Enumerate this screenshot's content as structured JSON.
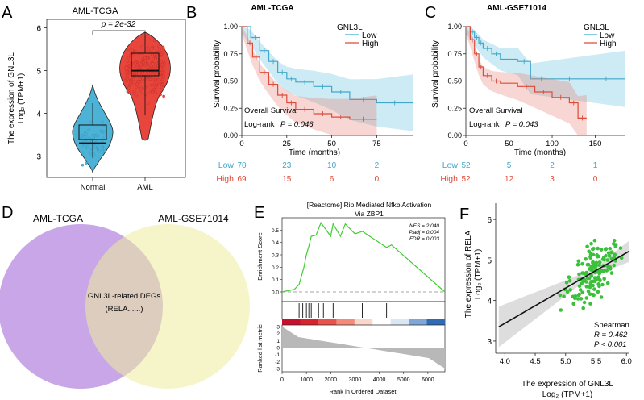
{
  "colors": {
    "normal": "#4db3d6",
    "aml": "#e8453c",
    "low": "#41a7c9",
    "high": "#dd4b39",
    "venn_left": "#c9a6e8",
    "venn_right": "#ecec9c",
    "enrich": "#3fcf2e",
    "scatter": "#3cc03c"
  },
  "chart_data": [
    {
      "panel": "A",
      "type": "violin+box",
      "title": "AML-TCGA",
      "ylabel_line1": "The expression of GNL3L",
      "ylabel_line2": "Log₂ (TPM+1)",
      "categories": [
        "Normal",
        "AML"
      ],
      "medians": [
        3.3,
        5.0
      ],
      "ylim": [
        2.5,
        6.2
      ],
      "yticks": [
        "3",
        "4",
        "5",
        "6"
      ],
      "pvalue": "p = 2e-32"
    },
    {
      "panel": "B",
      "type": "line",
      "title": "AML-TCGA",
      "xlabel": "Time (months)",
      "ylabel": "Survival probability",
      "legend_title": "GNL3L",
      "legend": [
        "Low",
        "High"
      ],
      "xticks": [
        "0",
        "25",
        "50",
        "75"
      ],
      "yticks": [
        "0.00",
        "0.25",
        "0.50",
        "0.75",
        "1.00"
      ],
      "xlim": [
        0,
        95
      ],
      "ylim": [
        0,
        1
      ],
      "series": [
        {
          "name": "Low",
          "x": [
            0,
            5,
            10,
            15,
            20,
            25,
            30,
            40,
            50,
            60,
            75,
            95
          ],
          "y": [
            1.0,
            0.9,
            0.78,
            0.68,
            0.58,
            0.52,
            0.49,
            0.45,
            0.4,
            0.33,
            0.3,
            0.3
          ]
        },
        {
          "name": "High",
          "x": [
            0,
            3,
            6,
            10,
            15,
            20,
            25,
            30,
            40,
            50,
            60,
            75
          ],
          "y": [
            1.0,
            0.85,
            0.72,
            0.58,
            0.47,
            0.37,
            0.3,
            0.24,
            0.2,
            0.17,
            0.15,
            0.15
          ]
        }
      ],
      "annotation1": "Overall Survival",
      "annotation2": "Log-rank",
      "pvalue": "P = 0.046",
      "risk_table": {
        "times": [
          "0",
          "25",
          "50",
          "75"
        ],
        "rows": [
          {
            "label": "Low",
            "values": [
              "70",
              "23",
              "10",
              "2"
            ]
          },
          {
            "label": "High",
            "values": [
              "69",
              "15",
              "6",
              "0"
            ]
          }
        ]
      }
    },
    {
      "panel": "C",
      "type": "line",
      "title": "AML-GSE71014",
      "xlabel": "Time (months)",
      "ylabel": "Survival probability",
      "legend_title": "GNL3L",
      "legend": [
        "Low",
        "High"
      ],
      "xticks": [
        "0",
        "50",
        "100",
        "150"
      ],
      "yticks": [
        "0.00",
        "0.25",
        "0.50",
        "0.75",
        "1.00"
      ],
      "xlim": [
        0,
        185
      ],
      "ylim": [
        0,
        1
      ],
      "series": [
        {
          "name": "Low",
          "x": [
            0,
            5,
            10,
            15,
            20,
            30,
            40,
            60,
            75,
            100,
            140,
            185
          ],
          "y": [
            1.0,
            0.95,
            0.9,
            0.85,
            0.8,
            0.75,
            0.7,
            0.68,
            0.52,
            0.52,
            0.52,
            0.52
          ]
        },
        {
          "name": "High",
          "x": [
            0,
            5,
            10,
            15,
            20,
            30,
            40,
            60,
            80,
            100,
            120,
            130,
            140
          ],
          "y": [
            1.0,
            0.88,
            0.75,
            0.63,
            0.55,
            0.5,
            0.48,
            0.45,
            0.4,
            0.35,
            0.3,
            0.16,
            0.16
          ]
        }
      ],
      "annotation1": "Overall Survival",
      "annotation2": "Log-rank",
      "pvalue": "P = 0.043",
      "risk_table": {
        "times": [
          "0",
          "50",
          "100",
          "150"
        ],
        "rows": [
          {
            "label": "Low",
            "values": [
              "52",
              "5",
              "2",
              "1"
            ]
          },
          {
            "label": "High",
            "values": [
              "52",
              "12",
              "3",
              "0"
            ]
          }
        ]
      }
    },
    {
      "panel": "E",
      "type": "line",
      "title_line1": "[Reactome] Rip Mediated Nfkb Activation",
      "title_line2": "Via ZBP1",
      "ylabel_top": "Enrichment Score",
      "ylabel_bottom": "Ranked list metric",
      "xlabel": "Rank in Ordered Dataset",
      "stats": [
        "NES = 2.040",
        "P.adj = 0.004",
        "FDR = 0.003"
      ],
      "xticks": [
        "0",
        "1000",
        "2000",
        "3000",
        "4000",
        "5000",
        "6000"
      ],
      "es_yticks": [
        "0.0",
        "0.1",
        "0.2",
        "0.3",
        "0.4",
        "0.5"
      ],
      "metric_yticks": [
        "-3",
        "-2",
        "-1",
        "0",
        "1",
        "2",
        "3"
      ],
      "xlim": [
        0,
        6700
      ],
      "x": [
        0,
        500,
        700,
        800,
        900,
        1000,
        1100,
        1200,
        1400,
        1600,
        2000,
        2100,
        2400,
        2600,
        3000,
        3300,
        4300,
        4500,
        6700
      ],
      "y": [
        0.0,
        0.02,
        0.06,
        0.13,
        0.2,
        0.3,
        0.37,
        0.45,
        0.46,
        0.56,
        0.45,
        0.55,
        0.45,
        0.55,
        0.47,
        0.49,
        0.36,
        0.38,
        0.0
      ],
      "hits": [
        700,
        850,
        1000,
        1100,
        1200,
        1500,
        1700,
        2100,
        3300,
        4300
      ]
    },
    {
      "panel": "F",
      "type": "scatter",
      "xlabel_line1": "The expression of GNL3L",
      "xlabel_line2": "Log₂ (TPM+1)",
      "ylabel_line1": "The expression of RELA",
      "ylabel_line2": "Log₂ (TPM+1)",
      "xticks": [
        "4.0",
        "4.5",
        "5.0",
        "5.5",
        "6.0"
      ],
      "yticks": [
        "3",
        "4",
        "5",
        "6"
      ],
      "xlim": [
        3.85,
        6.05
      ],
      "ylim": [
        2.7,
        6.4
      ],
      "regression": {
        "x": [
          3.9,
          6.05
        ],
        "y": [
          3.35,
          5.22
        ]
      },
      "stats": [
        "Spearman",
        "R = 0.462",
        "P < 0.001"
      ]
    }
  ],
  "panel_labels": [
    "A",
    "B",
    "C",
    "D",
    "E",
    "F"
  ],
  "venn": {
    "left_label": "AML-TCGA",
    "right_label": "AML-GSE71014",
    "center_label": "GNL3L-related DEGs",
    "center_example": "(RELA......)"
  }
}
